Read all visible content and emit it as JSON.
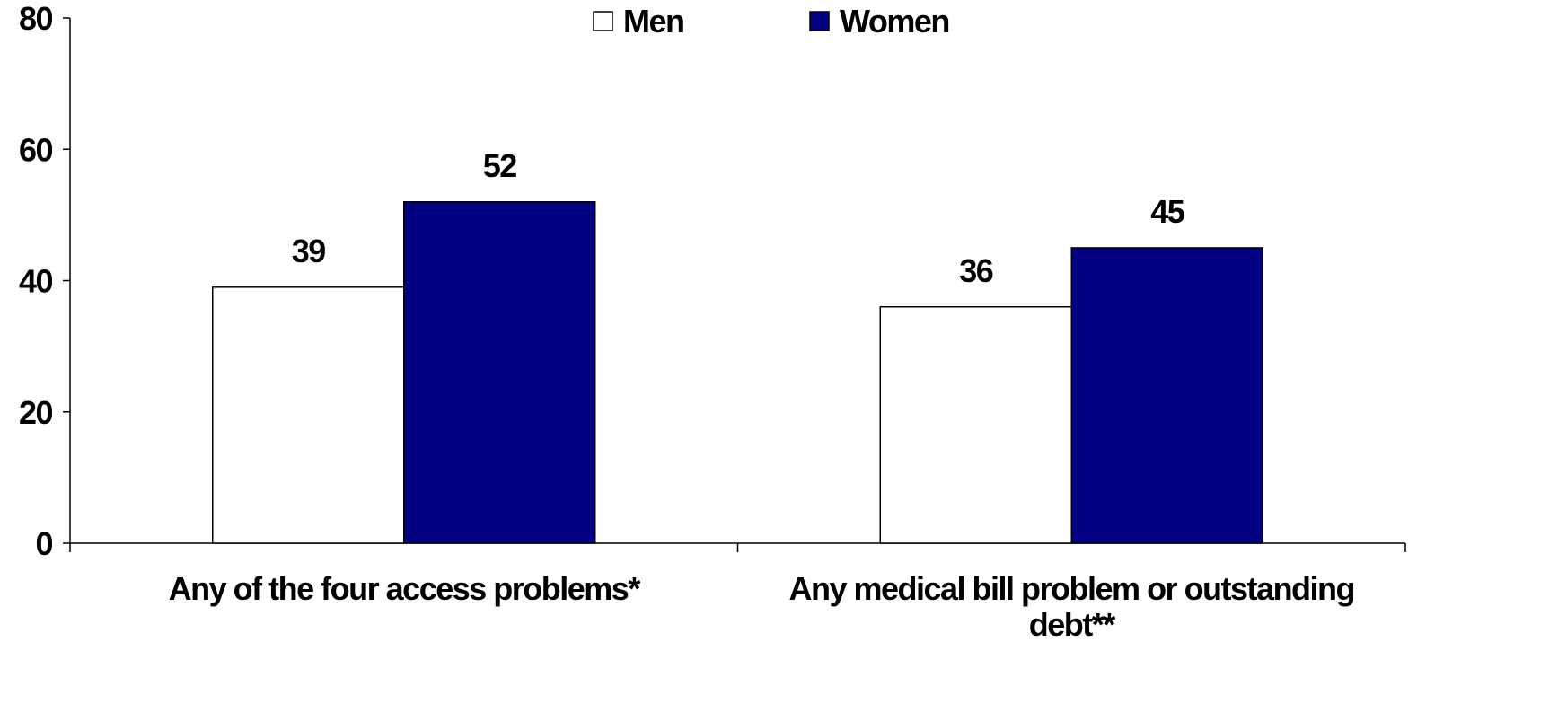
{
  "chart_data": {
    "type": "bar",
    "categories": [
      [
        "Any of the four access problems*"
      ],
      [
        "Any medical bill problem or outstanding",
        "debt**"
      ]
    ],
    "series": [
      {
        "name": "Men",
        "values": [
          39,
          36
        ],
        "color": "#ffffff",
        "stroke": "#000000"
      },
      {
        "name": "Women",
        "values": [
          52,
          45
        ],
        "color": "#000080",
        "stroke": "#000000"
      }
    ],
    "data_labels": [
      [
        "39",
        "36"
      ],
      [
        "52",
        "45"
      ]
    ],
    "ylim": [
      0,
      80
    ],
    "yticks": [
      0,
      20,
      40,
      60,
      80
    ],
    "ytick_labels": [
      "0",
      "20",
      "40",
      "60",
      "80"
    ],
    "grid": false,
    "legend_position": "top-center",
    "title": "",
    "xlabel": "",
    "ylabel": ""
  }
}
